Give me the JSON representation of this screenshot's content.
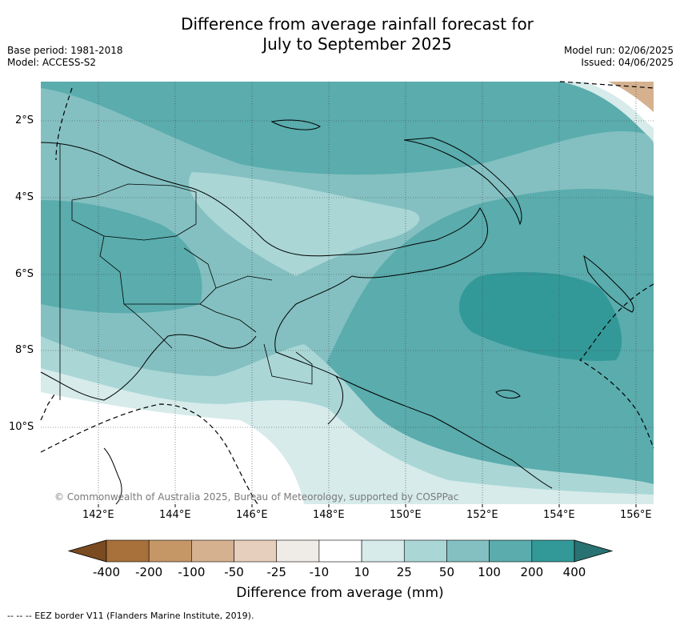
{
  "title_line1": "Difference from average rainfall forecast for",
  "title_line2": "July to September 2025",
  "base_period": "Base period: 1981-2018",
  "model": "Model: ACCESS-S2",
  "model_run": "Model run: 02/06/2025",
  "issued": "Issued: 04/06/2025",
  "lat_labels": [
    "2°S",
    "4°S",
    "6°S",
    "8°S",
    "10°S"
  ],
  "lon_labels": [
    "142°E",
    "144°E",
    "146°E",
    "148°E",
    "150°E",
    "152°E",
    "154°E",
    "156°E"
  ],
  "copyright": "© Commonwealth of Australia 2025, Bureau of Meteorology, supported by COSPPac",
  "colorbar": {
    "ticks": [
      "-400",
      "-200",
      "-100",
      "-50",
      "-25",
      "-10",
      "10",
      "25",
      "50",
      "100",
      "200",
      "400"
    ],
    "colors": [
      "#a8703a",
      "#c59666",
      "#d5b190",
      "#e6cfbc",
      "#efebe7",
      "#ffffff",
      "#d6ebea",
      "#aad6d6",
      "#84c0c1",
      "#5aacad",
      "#339898",
      "#297273"
    ],
    "label": "Difference from average (mm)"
  },
  "legend": "-- -- -- EEZ border V11 (Flanders Marine Institute, 2019)."
}
